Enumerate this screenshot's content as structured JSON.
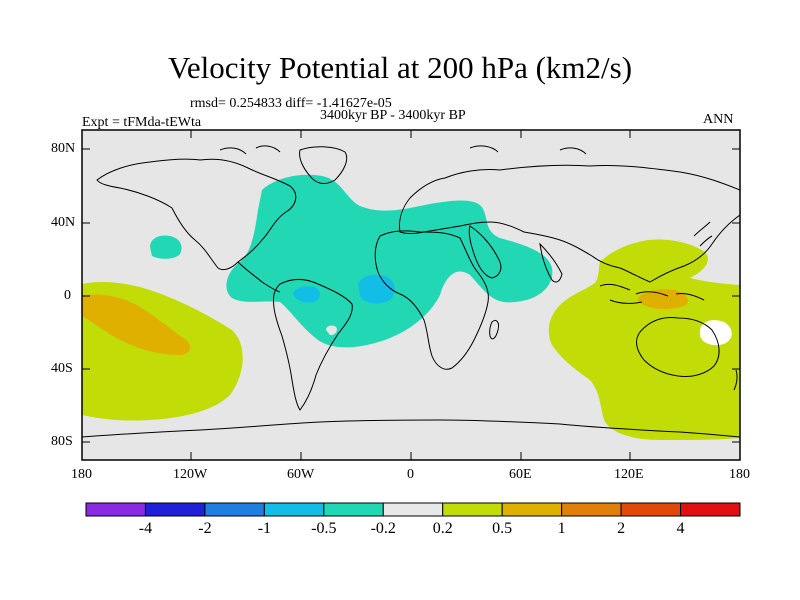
{
  "title": "Velocity Potential at 200 hPa (km2/s)",
  "stats": "rmsd= 0.254833 diff= -1.41627e-05",
  "period": "3400kyr BP - 3400kyr BP",
  "experiment": "Expt = tFMda-tEWta",
  "season": "ANN",
  "lat_ticks": [
    "80N",
    "40N",
    "0",
    "40S",
    "80S"
  ],
  "lon_ticks": [
    "180",
    "120W",
    "60W",
    "0",
    "60E",
    "120E",
    "180"
  ],
  "colorbar": {
    "colors": [
      "#8a2be2",
      "#2020d8",
      "#1e7fe0",
      "#12bde6",
      "#22d8b4",
      "#e8e8e8",
      "#c2dc08",
      "#e0b000",
      "#e0800a",
      "#e04a08",
      "#e01010"
    ],
    "labels": [
      "-4",
      "-2",
      "-1",
      "-0.5",
      "-0.2",
      "0.2",
      "0.5",
      "1",
      "2",
      "4"
    ]
  },
  "colors": {
    "land_outline": "#000000",
    "background": "#e6e6e6",
    "negative_weak": "#22d8b4",
    "negative_moderate": "#12bde6",
    "positive_weak": "#c2dc08",
    "positive_moderate": "#e0b000"
  }
}
